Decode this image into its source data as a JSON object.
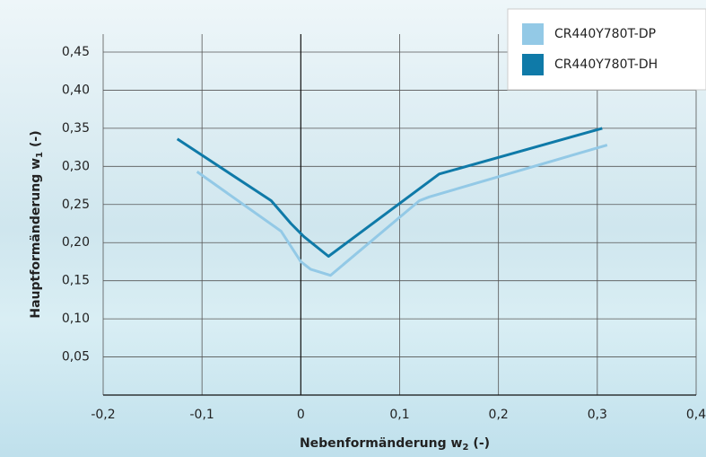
{
  "chart_data": {
    "type": "line",
    "xlabel": [
      "Nebenformänderung w",
      "2",
      "(-)"
    ],
    "ylabel": [
      "Hauptformänderung w",
      "1",
      "(-)"
    ],
    "xlim": [
      -0.2,
      0.4
    ],
    "ylim": [
      0,
      0.45
    ],
    "xticks": [
      {
        "value": -0.2,
        "label": "-0,2"
      },
      {
        "value": -0.1,
        "label": "-0,1"
      },
      0,
      {
        "value": 0.1,
        "label": "0,1"
      },
      {
        "value": 0.2,
        "label": "0,2"
      },
      {
        "value": 0.3,
        "label": "0,3"
      },
      {
        "value": 0.4,
        "label": "0,4"
      }
    ],
    "yticks": [
      {
        "value": 0.05,
        "label": "0,05"
      },
      {
        "value": 0.1,
        "label": "0,10"
      },
      {
        "value": 0.15,
        "label": "0,15"
      },
      {
        "value": 0.2,
        "label": "0,20"
      },
      {
        "value": 0.25,
        "label": "0,25"
      },
      {
        "value": 0.3,
        "label": "0,30"
      },
      {
        "value": 0.35,
        "label": "0,35"
      },
      {
        "value": 0.4,
        "label": "0,40"
      },
      {
        "value": 0.45,
        "label": "0,45"
      }
    ],
    "grid": true,
    "legend": "upper right",
    "series": [
      {
        "name": "CR440Y780T-DP",
        "color": "#93c9e6",
        "x": [
          -0.105,
          -0.02,
          0,
          0.01,
          0.03,
          0.12,
          0.13,
          0.31
        ],
        "values": [
          0.293,
          0.215,
          0.175,
          0.165,
          0.157,
          0.255,
          0.26,
          0.328
        ]
      },
      {
        "name": "CR440Y780T-DH",
        "color": "#0f7aa8",
        "x": [
          -0.125,
          -0.03,
          -0.01,
          0.003,
          0.028,
          0.14,
          0.305
        ],
        "values": [
          0.336,
          0.255,
          0.225,
          0.208,
          0.182,
          0.29,
          0.35
        ]
      }
    ]
  }
}
